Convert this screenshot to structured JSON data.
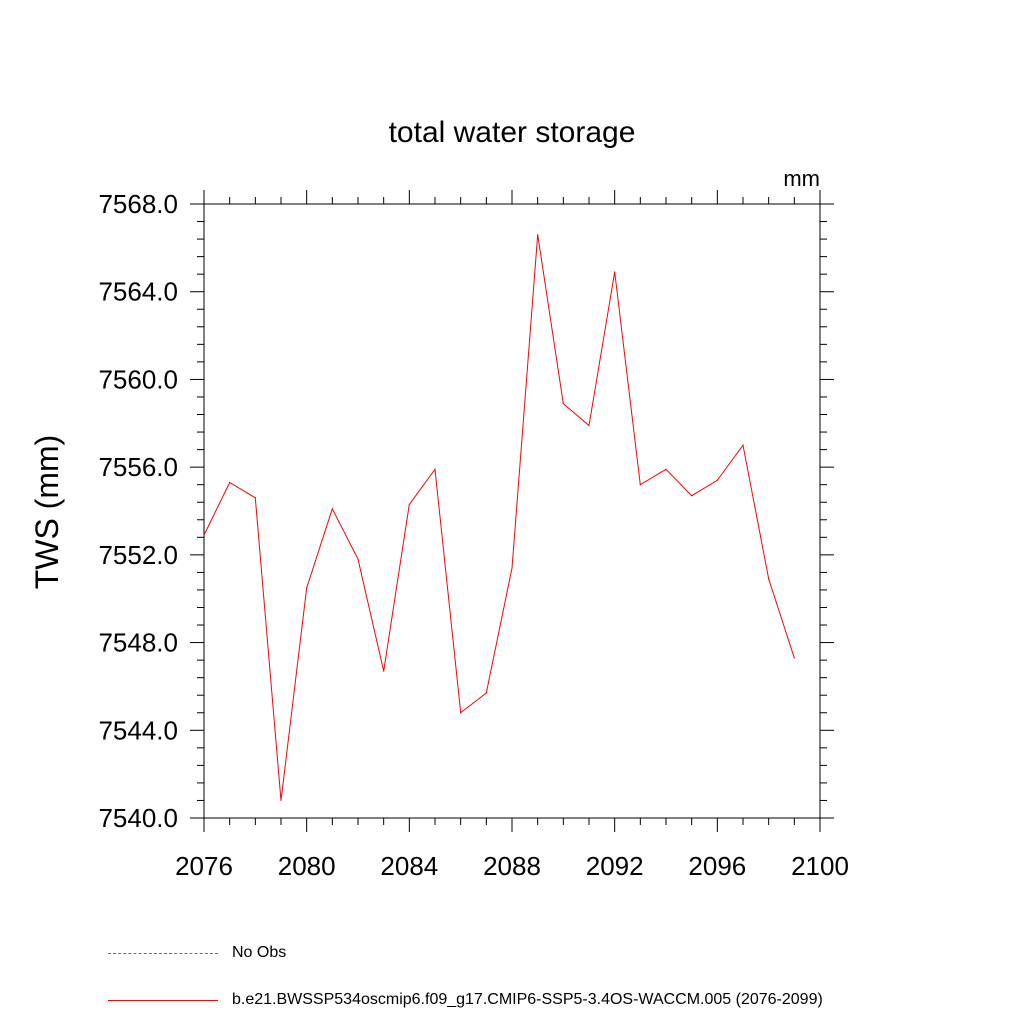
{
  "chart_data": {
    "type": "line",
    "title": "total water storage",
    "units_label": "mm",
    "ylabel": "TWS  (mm)",
    "xlabel": "",
    "xlim": [
      2076,
      2100
    ],
    "ylim": [
      7540,
      7568
    ],
    "x_ticks": [
      2076,
      2080,
      2084,
      2088,
      2092,
      2096,
      2100
    ],
    "y_ticks": [
      "7540.0",
      "7544.0",
      "7548.0",
      "7552.0",
      "7556.0",
      "7560.0",
      "7564.0",
      "7568.0"
    ],
    "series": [
      {
        "name": "b.e21.BWSSP534oscmip6.f09_g17.CMIP6-SSP5-3.4OS-WACCM.005 (2076-2099)",
        "color": "#ff0000",
        "x": [
          2076,
          2077,
          2078,
          2079,
          2080,
          2081,
          2082,
          2083,
          2084,
          2085,
          2086,
          2087,
          2088,
          2089,
          2090,
          2091,
          2092,
          2093,
          2094,
          2095,
          2096,
          2097,
          2098,
          2099
        ],
        "values": [
          7552.9,
          7555.3,
          7554.6,
          7540.8,
          7550.5,
          7554.1,
          7551.8,
          7546.7,
          7554.3,
          7555.9,
          7544.8,
          7545.7,
          7551.4,
          7566.6,
          7558.9,
          7557.9,
          7564.9,
          7555.2,
          7555.9,
          7554.7,
          7555.4,
          7557.0,
          7550.9,
          7547.3
        ]
      }
    ],
    "legend": [
      {
        "label": "No Obs",
        "color": "#6a5acd",
        "style": "dashed"
      },
      {
        "label": "b.e21.BWSSP534oscmip6.f09_g17.CMIP6-SSP5-3.4OS-WACCM.005 (2076-2099)",
        "color": "#ff0000",
        "style": "solid"
      }
    ],
    "legend_position": "bottom-left"
  }
}
